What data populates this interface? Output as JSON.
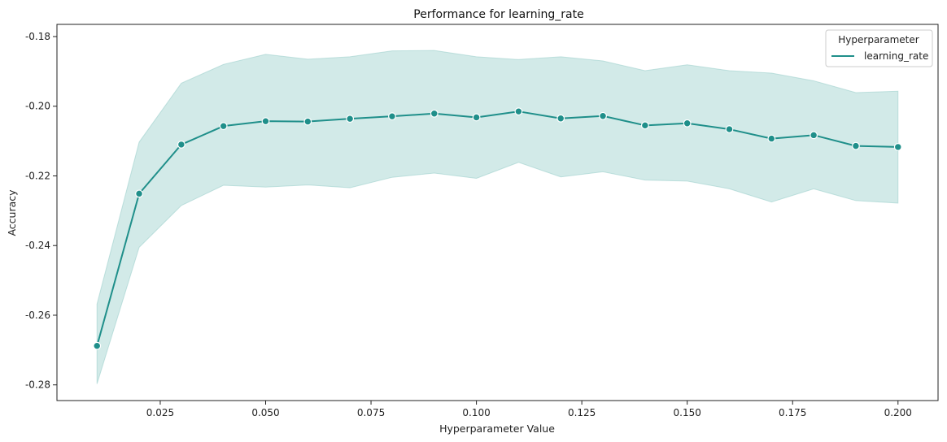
{
  "chart_data": {
    "type": "line",
    "title": "Performance for learning_rate",
    "xlabel": "Hyperparameter Value",
    "ylabel": "Accuracy",
    "xlim": [
      0.0005,
      0.2095
    ],
    "ylim": [
      -0.2845,
      -0.1765
    ],
    "x_ticks": [
      0.025,
      0.05,
      0.075,
      0.1,
      0.125,
      0.15,
      0.175,
      0.2
    ],
    "x_tick_labels": [
      "0.025",
      "0.050",
      "0.075",
      "0.100",
      "0.125",
      "0.150",
      "0.175",
      "0.200"
    ],
    "y_ticks": [
      -0.28,
      -0.26,
      -0.24,
      -0.22,
      -0.2,
      -0.18
    ],
    "y_tick_labels": [
      "-0.28",
      "-0.26",
      "-0.24",
      "-0.22",
      "-0.20",
      "-0.18"
    ],
    "grid": false,
    "legend": {
      "title": "Hyperparameter",
      "placement": "top-right"
    },
    "series": [
      {
        "name": "learning_rate",
        "color": "#1f8f8a",
        "band_color": "#8fcac6",
        "x": [
          0.01,
          0.02,
          0.03,
          0.04,
          0.05,
          0.06,
          0.07,
          0.08,
          0.09,
          0.1,
          0.11,
          0.12,
          0.13,
          0.14,
          0.15,
          0.16,
          0.17,
          0.18,
          0.19,
          0.2
        ],
        "y": [
          -0.2688,
          -0.2251,
          -0.211,
          -0.2057,
          -0.2043,
          -0.2044,
          -0.2036,
          -0.2029,
          -0.2021,
          -0.2032,
          -0.2015,
          -0.2035,
          -0.2028,
          -0.2055,
          -0.2049,
          -0.2066,
          -0.2093,
          -0.2083,
          -0.2114,
          -0.2117
        ],
        "ci_upper": [
          -0.2568,
          -0.2103,
          -0.1934,
          -0.188,
          -0.1851,
          -0.1865,
          -0.1858,
          -0.1841,
          -0.184,
          -0.1858,
          -0.1866,
          -0.1858,
          -0.187,
          -0.1898,
          -0.1881,
          -0.1898,
          -0.1905,
          -0.1927,
          -0.1961,
          -0.1957
        ],
        "ci_lower": [
          -0.2797,
          -0.2405,
          -0.2285,
          -0.2227,
          -0.2232,
          -0.2226,
          -0.2234,
          -0.2204,
          -0.2192,
          -0.2207,
          -0.2161,
          -0.2203,
          -0.2188,
          -0.2212,
          -0.2215,
          -0.2237,
          -0.2275,
          -0.2237,
          -0.2271,
          -0.2278
        ]
      }
    ]
  }
}
